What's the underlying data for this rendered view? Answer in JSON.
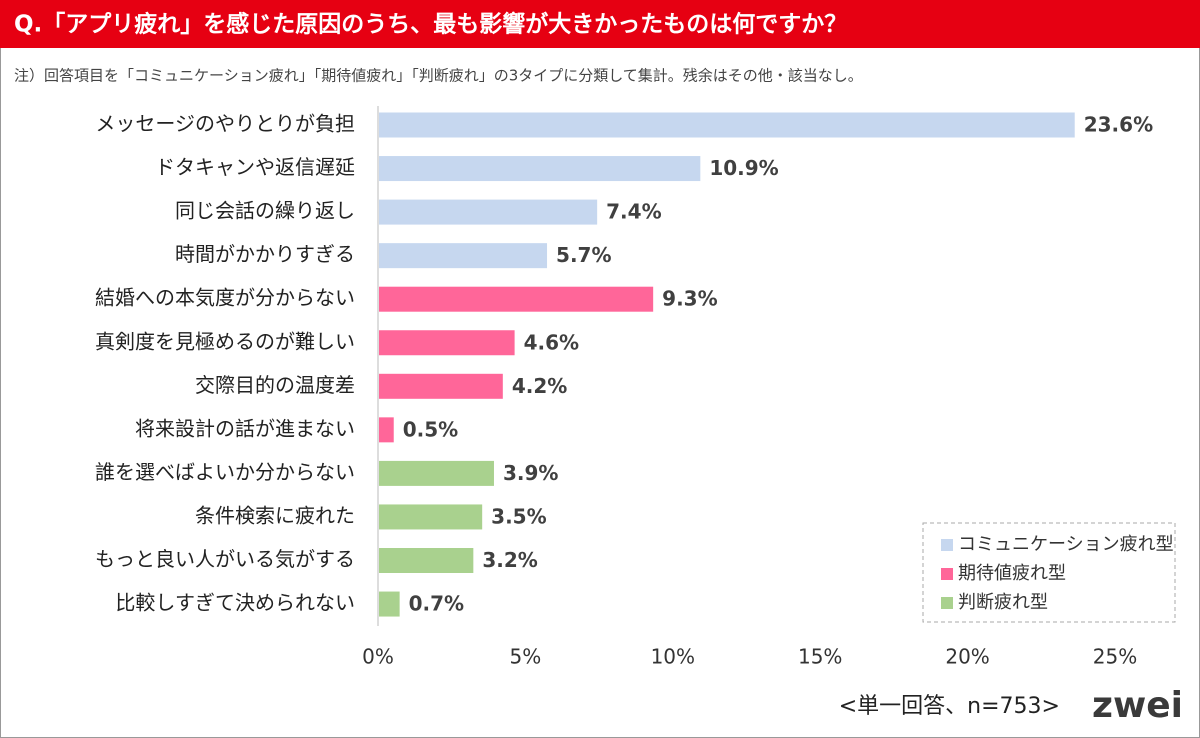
{
  "chart_data": {
    "type": "hbar",
    "title": "Q.「アプリ疲れ」を感じた原因のうち、最も影響が大きかったものは何ですか？",
    "subtitle": "注）回答項目を「コミュニケーション疲れ」「期待値疲れ」「判断疲れ」の3タイプに分類して集計。残余はその他・該当なし。",
    "categories": [
      "メッセージのやりとりが負担",
      "ドタキャンや返信遅延",
      "同じ会話の繰り返し",
      "時間がかかりすぎる",
      "結婚への本気度が分からない",
      "真剣度を見極めるのが難しい",
      "交際目的の温度差",
      "将来設計の話が進まない",
      "誰を選べばよいか分からない",
      "条件検索に疲れた",
      "もっと良い人がいる気がする",
      "比較しすぎて決められない"
    ],
    "series": [
      {
        "name": "コミュニケーション疲れ型",
        "color": "#c6d7ef",
        "values": [
          23.6,
          10.9,
          7.4,
          5.7,
          null,
          null,
          null,
          null,
          null,
          null,
          null,
          null
        ],
        "value_labels": [
          "23.6%",
          "10.9%",
          "7.4%",
          "5.7%",
          null,
          null,
          null,
          null,
          null,
          null,
          null,
          null
        ]
      },
      {
        "name": "期待値疲れ型",
        "color": "#ff6699",
        "values": [
          null,
          null,
          null,
          null,
          9.3,
          4.6,
          4.2,
          0.5,
          null,
          null,
          null,
          null
        ],
        "value_labels": [
          null,
          null,
          null,
          null,
          "9.3%",
          "4.6%",
          "4.2%",
          "0.5%",
          null,
          null,
          null,
          null
        ]
      },
      {
        "name": "判断疲れ型",
        "color": "#a9d18e",
        "values": [
          null,
          null,
          null,
          null,
          null,
          null,
          null,
          null,
          3.9,
          3.5,
          3.2,
          0.7
        ],
        "value_labels": [
          null,
          null,
          null,
          null,
          null,
          null,
          null,
          null,
          "3.9%",
          "3.5%",
          "3.2%",
          "0.7%"
        ]
      }
    ],
    "xlim": [
      0,
      25
    ],
    "xticks": [
      {
        "value": 0,
        "label": "0%"
      },
      {
        "value": 5,
        "label": "5%"
      },
      {
        "value": 10,
        "label": "10%"
      },
      {
        "value": 15,
        "label": "15%"
      },
      {
        "value": 20,
        "label": "20%"
      },
      {
        "value": 25,
        "label": "25%"
      }
    ],
    "legend_position": "lower right",
    "footnote": "<単一回答、n=753>",
    "logo": "zwei"
  }
}
